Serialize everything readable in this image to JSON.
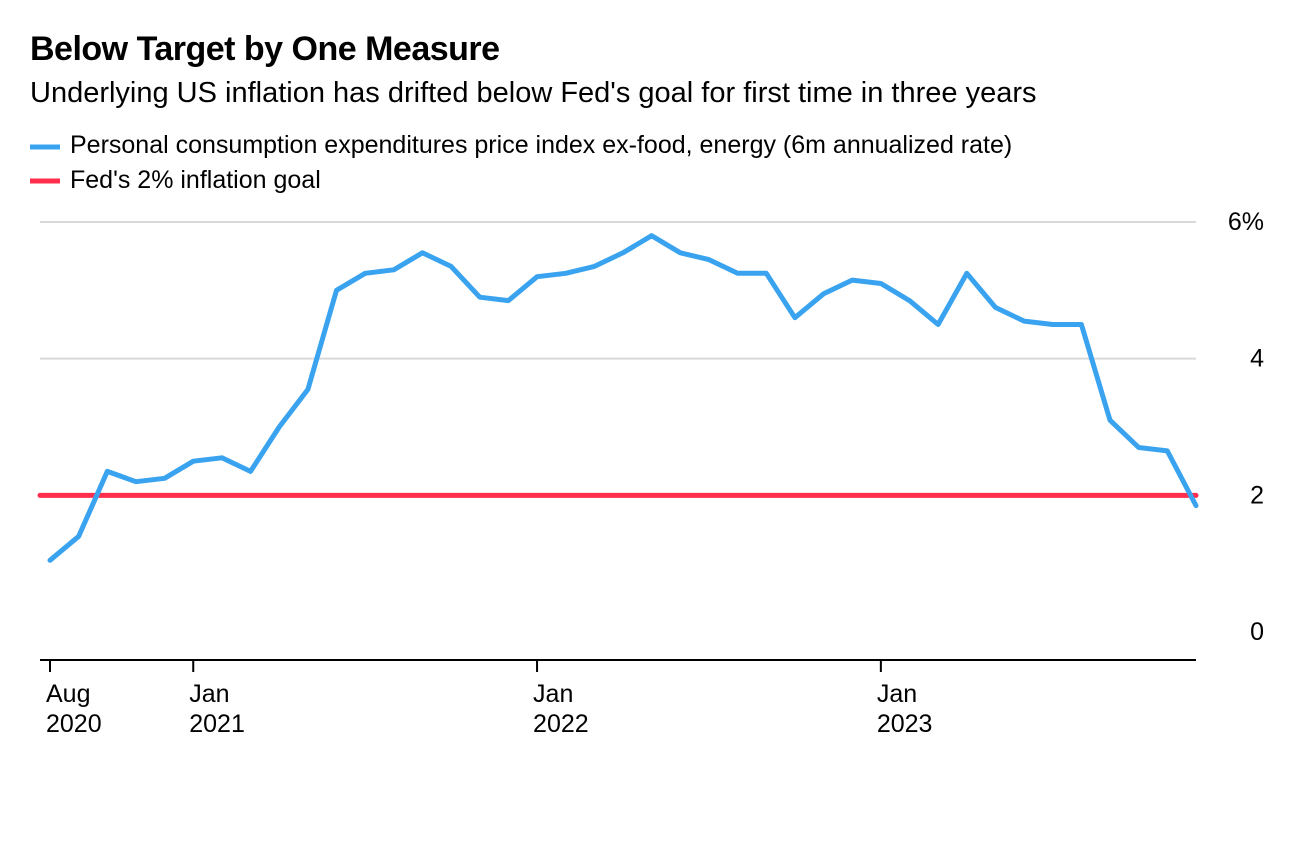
{
  "title": "Below Target by One Measure",
  "subtitle": "Underlying US inflation has drifted below Fed's goal for first time in three years",
  "legend": {
    "series1": "Personal consumption expenditures price index ex-food, energy (6m annualized rate)",
    "series2": "Fed's 2% inflation goal"
  },
  "chart": {
    "type": "line",
    "background_color": "#ffffff",
    "grid_color": "#d9d9d9",
    "axis_color": "#000000",
    "series1_color": "#3aa3f0",
    "series2_color": "#ff2e4c",
    "line_width": 5,
    "goal_line_width": 5,
    "ylim": [
      0,
      6
    ],
    "yticks": [
      0,
      2,
      4,
      6
    ],
    "ytick_labels": [
      "0",
      "2",
      "4",
      "6%"
    ],
    "x_count": 41,
    "xticks": [
      {
        "index": 0,
        "line1": "Aug",
        "line2": "2020"
      },
      {
        "index": 5,
        "line1": "Jan",
        "line2": "2021"
      },
      {
        "index": 17,
        "line1": "Jan",
        "line2": "2022"
      },
      {
        "index": 29,
        "line1": "Jan",
        "line2": "2023"
      }
    ],
    "goal_value": 2.0,
    "values": [
      1.05,
      1.4,
      2.35,
      2.2,
      2.25,
      2.5,
      2.55,
      2.35,
      3.0,
      3.55,
      5.0,
      5.25,
      5.3,
      5.55,
      5.35,
      4.9,
      4.85,
      5.2,
      5.25,
      5.35,
      5.55,
      5.8,
      5.55,
      5.45,
      5.25,
      5.25,
      4.6,
      4.95,
      5.15,
      5.1,
      4.85,
      4.5,
      5.25,
      4.75,
      4.55,
      4.5,
      4.5,
      3.1,
      2.7,
      2.65,
      1.85
    ],
    "title_fontsize": 34,
    "subtitle_fontsize": 29,
    "label_fontsize": 25
  }
}
